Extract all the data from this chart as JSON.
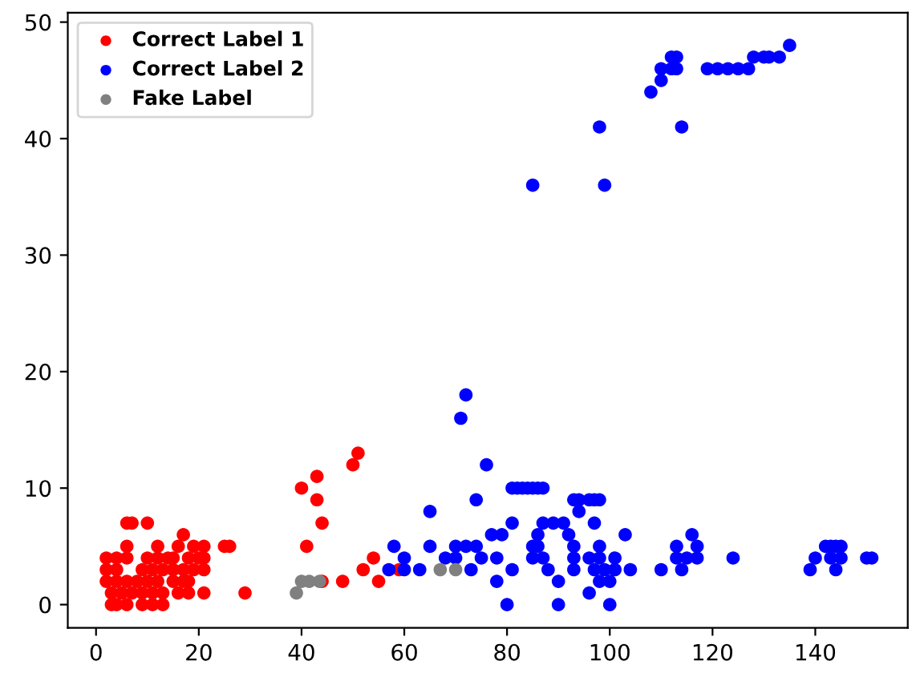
{
  "chart_data": {
    "type": "scatter",
    "marker": "circle",
    "legend": "top left",
    "grid": false,
    "xlim": [
      -5.5,
      158
    ],
    "ylim": [
      -2,
      50.8
    ],
    "xticks": [
      0,
      20,
      40,
      60,
      80,
      100,
      120,
      140
    ],
    "yticks": [
      0,
      10,
      20,
      30,
      40,
      50
    ],
    "series": [
      {
        "name": "Correct Label 1",
        "color": "#ff0000",
        "x": [
          51,
          50,
          43,
          40,
          43,
          44,
          41,
          44,
          48,
          52,
          54,
          55,
          59,
          6,
          7,
          10,
          6,
          12,
          17,
          16,
          19,
          21,
          25,
          26,
          2,
          4,
          6,
          10,
          12,
          14,
          15,
          18,
          20,
          21,
          2,
          4,
          9,
          11,
          13,
          15,
          17,
          19,
          21,
          2,
          4,
          6,
          8,
          10,
          12,
          15,
          17,
          18,
          3,
          5,
          7,
          9,
          11,
          13,
          16,
          18,
          21,
          29,
          3,
          4,
          6,
          9,
          11,
          13
        ],
        "values": [
          13,
          12,
          11,
          10,
          9,
          7,
          5,
          2,
          2,
          3,
          4,
          2,
          3,
          7,
          7,
          7,
          5,
          5,
          6,
          5,
          5,
          5,
          5,
          5,
          4,
          4,
          4,
          4,
          4,
          4,
          4,
          4,
          4,
          4,
          3,
          3,
          3,
          3,
          3,
          3,
          3,
          3,
          3,
          2,
          2,
          2,
          2,
          2,
          2,
          2,
          2,
          2,
          1,
          1,
          1,
          1,
          1,
          1,
          1,
          1,
          1,
          1,
          0,
          0,
          0,
          0,
          0,
          0
        ]
      },
      {
        "name": "Correct Label 2",
        "color": "#0000ff",
        "x": [
          72,
          71,
          76,
          81,
          82,
          83,
          84,
          85,
          86,
          87,
          74,
          93,
          94,
          96,
          97,
          98,
          94,
          65,
          81,
          87,
          89,
          91,
          97,
          77,
          79,
          86,
          92,
          103,
          58,
          65,
          70,
          72,
          74,
          85,
          86,
          93,
          98,
          60,
          68,
          70,
          75,
          78,
          85,
          87,
          93,
          96,
          98,
          101,
          57,
          60,
          63,
          73,
          81,
          88,
          93,
          97,
          99,
          101,
          104,
          110,
          78,
          90,
          98,
          100,
          96,
          80,
          90,
          100,
          113,
          116,
          117,
          113,
          115,
          117,
          114,
          124,
          139,
          140,
          142,
          143,
          144,
          145,
          143,
          145,
          144,
          150,
          151,
          85,
          99,
          98,
          114,
          108,
          110,
          110,
          112,
          113,
          112,
          113,
          119,
          121,
          123,
          125,
          127,
          128,
          130,
          131,
          133,
          135
        ],
        "values": [
          18,
          16,
          12,
          10,
          10,
          10,
          10,
          10,
          10,
          10,
          9,
          9,
          9,
          9,
          9,
          9,
          8,
          8,
          7,
          7,
          7,
          7,
          7,
          6,
          6,
          6,
          6,
          6,
          5,
          5,
          5,
          5,
          5,
          5,
          5,
          5,
          5,
          4,
          4,
          4,
          4,
          4,
          4,
          4,
          4,
          4,
          4,
          4,
          3,
          3,
          3,
          3,
          3,
          3,
          3,
          3,
          3,
          3,
          3,
          3,
          2,
          2,
          2,
          2,
          1,
          0,
          0,
          0,
          5,
          6,
          5,
          4,
          4,
          4,
          3,
          4,
          3,
          4,
          5,
          5,
          5,
          5,
          4,
          4,
          3,
          4,
          4,
          36,
          36,
          41,
          41,
          44,
          45,
          46,
          46,
          46,
          47,
          47,
          46,
          46,
          46,
          46,
          46,
          47,
          47,
          47,
          47,
          48
        ]
      },
      {
        "name": "Fake Label",
        "color": "#808080",
        "x": [
          39,
          40,
          41.5,
          43.5,
          67,
          70
        ],
        "values": [
          1,
          2,
          2,
          2,
          3,
          3
        ]
      }
    ]
  }
}
